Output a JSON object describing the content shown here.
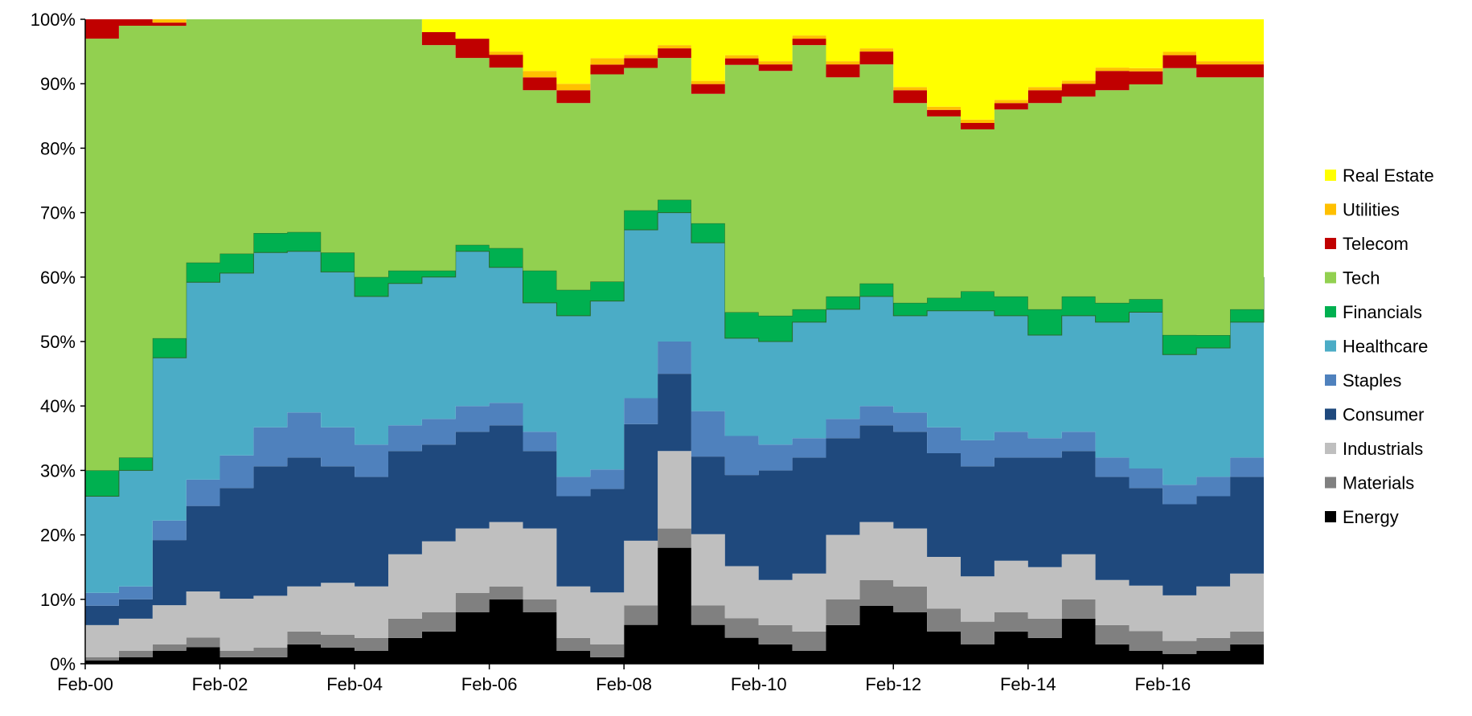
{
  "chart_data": {
    "type": "area",
    "stacked": true,
    "normalized_percent": true,
    "title": "",
    "xlabel": "",
    "ylabel": "",
    "ylim": [
      0,
      100
    ],
    "yticks": [
      "0%",
      "10%",
      "20%",
      "30%",
      "40%",
      "50%",
      "60%",
      "70%",
      "80%",
      "90%",
      "100%"
    ],
    "xticks": [
      "Feb-00",
      "Feb-02",
      "Feb-04",
      "Feb-06",
      "Feb-08",
      "Feb-10",
      "Feb-12",
      "Feb-14",
      "Feb-16"
    ],
    "x": [
      "Feb-00",
      "Aug-00",
      "Feb-01",
      "Aug-01",
      "Feb-02",
      "Aug-02",
      "Feb-03",
      "Aug-03",
      "Feb-04",
      "Aug-04",
      "Feb-05",
      "Aug-05",
      "Feb-06",
      "Aug-06",
      "Feb-07",
      "Aug-07",
      "Feb-08",
      "Aug-08",
      "Feb-09",
      "Aug-09",
      "Feb-10",
      "Aug-10",
      "Feb-11",
      "Aug-11",
      "Feb-12",
      "Aug-12",
      "Feb-13",
      "Aug-13",
      "Feb-14",
      "Aug-14",
      "Feb-15",
      "Aug-15",
      "Feb-16",
      "Aug-16",
      "Feb-17",
      "Aug-17"
    ],
    "grid": false,
    "legend_position": "right",
    "series": [
      {
        "name": "Energy",
        "color": "#000000",
        "values": [
          0.5,
          1,
          2,
          2.5,
          1,
          1,
          3,
          2.5,
          2,
          4,
          5,
          8,
          10,
          8,
          2,
          1,
          6,
          18,
          6,
          4,
          3,
          2,
          6,
          9,
          8,
          5,
          3,
          5,
          4,
          7,
          3,
          2,
          1.5,
          2,
          3,
          5
        ]
      },
      {
        "name": "Materials",
        "color": "#808080",
        "values": [
          0.5,
          1,
          1,
          1.5,
          1,
          1.5,
          2,
          2,
          2,
          3,
          3,
          3,
          2,
          2,
          2,
          2,
          3,
          3,
          3,
          3,
          3,
          3,
          4,
          4,
          4,
          3.5,
          3.5,
          3,
          3,
          3,
          3,
          3,
          2,
          2,
          2,
          1
        ]
      },
      {
        "name": "Industrials",
        "color": "#bfbfbf",
        "values": [
          5,
          5,
          6,
          7,
          8,
          8,
          7,
          8,
          8,
          10,
          11,
          10,
          10,
          11,
          8,
          8,
          10,
          12,
          11,
          8,
          7,
          9,
          10,
          9,
          9,
          8,
          7,
          8,
          8,
          7,
          7,
          7,
          7,
          8,
          9,
          9
        ]
      },
      {
        "name": "Consumer",
        "color": "#1f497d",
        "values": [
          3,
          3,
          10,
          13,
          17,
          20,
          20,
          18,
          17,
          16,
          15,
          15,
          15,
          12,
          14,
          16,
          18,
          12,
          12,
          14,
          17,
          18,
          15,
          15,
          15,
          16,
          17,
          16,
          17,
          16,
          16,
          15,
          14,
          14,
          15,
          16
        ]
      },
      {
        "name": "Staples",
        "color": "#4f81bd",
        "values": [
          2,
          2,
          3,
          4,
          5,
          6,
          7,
          6,
          5,
          4,
          4,
          4,
          3.5,
          3,
          3,
          3,
          4,
          5,
          7,
          6,
          4,
          3,
          3,
          3,
          3,
          4,
          4,
          4,
          3,
          3,
          3,
          3,
          3,
          3,
          3,
          3
        ]
      },
      {
        "name": "Healthcare",
        "color": "#4bacc6",
        "values": [
          15,
          18,
          25,
          30,
          28,
          27,
          25,
          24,
          23,
          22,
          22,
          24,
          21,
          20,
          25,
          26,
          26,
          20,
          26,
          15,
          16,
          18,
          17,
          17,
          15,
          18,
          20,
          18,
          16,
          18,
          21,
          24,
          20,
          20,
          21,
          22
        ]
      },
      {
        "name": "Financials",
        "color": "#00b050",
        "values": [
          4,
          2,
          3,
          3,
          3,
          3,
          3,
          3,
          3,
          2,
          1,
          1,
          3,
          5,
          4,
          3,
          3,
          2,
          3,
          4,
          4,
          2,
          2,
          2,
          2,
          2,
          3,
          3,
          4,
          3,
          3,
          2,
          3,
          2,
          2,
          4
        ]
      },
      {
        "name": "Tech",
        "color": "#92d050",
        "values": [
          67,
          67,
          48,
          37,
          36,
          33,
          33,
          36,
          40,
          39,
          35,
          29,
          28,
          28,
          29,
          32,
          22,
          22,
          20,
          38,
          38,
          41,
          34,
          34,
          31,
          28,
          25,
          29,
          32,
          31,
          33,
          33,
          41,
          40,
          36,
          33
        ]
      },
      {
        "name": "Telecom",
        "color": "#c00000",
        "values": [
          3,
          1,
          0.5,
          0,
          0,
          0,
          0,
          0,
          0,
          0,
          2,
          3,
          2,
          2,
          2,
          1.5,
          1.5,
          1.5,
          1.5,
          1,
          1,
          1,
          2,
          2,
          2,
          1,
          1,
          1,
          2,
          2,
          3,
          2,
          2,
          2,
          2,
          2
        ]
      },
      {
        "name": "Utilities",
        "color": "#ffc000",
        "values": [
          0,
          0,
          0.5,
          0,
          0,
          0,
          0,
          0,
          0,
          0,
          0,
          0,
          0.5,
          1,
          1,
          1,
          0.5,
          0.5,
          0.5,
          0.5,
          0.5,
          0.5,
          0.5,
          0.5,
          0.5,
          0.5,
          0.5,
          0.5,
          0.5,
          0.5,
          0.5,
          0.5,
          0.5,
          0.5,
          0.5,
          0.5
        ]
      },
      {
        "name": "Real Estate",
        "color": "#ffff00",
        "values": [
          0,
          0,
          0,
          0,
          0,
          0,
          0,
          0,
          0,
          0,
          2,
          3,
          5,
          8,
          10,
          6,
          5.5,
          4,
          9.5,
          5.5,
          6.5,
          2.5,
          6.5,
          4.5,
          10.5,
          13.5,
          15.5,
          12.5,
          10.5,
          9.5,
          7.5,
          7.5,
          5,
          6.5,
          6.5,
          4.5
        ]
      }
    ]
  }
}
